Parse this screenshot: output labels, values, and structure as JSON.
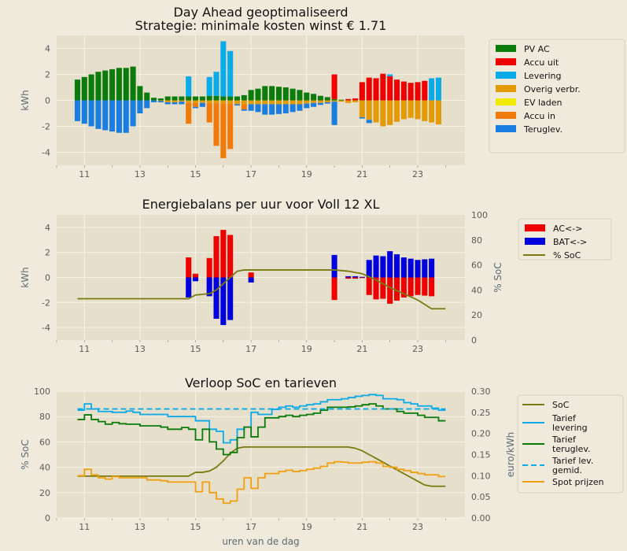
{
  "colors": {
    "figure_bg": "#efeadb",
    "axes_bg": "#e6dfcb",
    "grid": "#f5f2e8",
    "pv": "#0b7b0b",
    "accu_uit": "#ee0000",
    "levering": "#0aabe8",
    "overig": "#e39a07",
    "ev": "#f2ea00",
    "accu_in": "#f07b0a",
    "teruglev": "#1a7de0",
    "ac": "#ee0000",
    "bat": "#0000dd",
    "soc": "#7a7a10",
    "tarief_lev": "#0aabe8",
    "tarief_terug": "#0a7a0a",
    "tarief_gem": "#0aabe8",
    "spot": "#f0a010"
  },
  "chart_data": [
    {
      "type": "bar",
      "title": "Day Ahead geoptimaliseerd\nStrategie: minimale kosten winst € 1.71",
      "ylabel": "kWh",
      "xlim": [
        10,
        24.7
      ],
      "ylim": [
        -5,
        5
      ],
      "xticks": [
        11,
        13,
        15,
        17,
        19,
        21,
        23
      ],
      "yticks": [
        -4,
        -2,
        0,
        2,
        4
      ],
      "grid": true,
      "legend_position": "right-outside",
      "legend": [
        "PV AC",
        "Accu uit",
        "Levering",
        "Overig verbr.",
        "EV laden",
        "Accu in",
        "Teruglev."
      ],
      "hours": [
        10.75,
        11,
        11.25,
        11.5,
        11.75,
        12,
        12.25,
        12.5,
        12.75,
        13,
        13.25,
        13.5,
        13.75,
        14,
        14.25,
        14.5,
        14.75,
        15,
        15.25,
        15.5,
        15.75,
        16,
        16.25,
        16.5,
        16.75,
        17,
        17.25,
        17.5,
        17.75,
        18,
        18.25,
        18.5,
        18.75,
        19,
        19.25,
        19.5,
        19.75,
        20,
        20.25,
        20.5,
        20.75,
        21,
        21.25,
        21.5,
        21.75,
        22,
        22.25,
        22.5,
        22.75,
        23,
        23.25,
        23.5,
        23.75
      ],
      "series": [
        {
          "name": "PV AC",
          "values": [
            1.6,
            1.8,
            2.0,
            2.2,
            2.3,
            2.4,
            2.5,
            2.5,
            2.6,
            1.1,
            0.6,
            0.2,
            0.15,
            0.3,
            0.3,
            0.3,
            0.3,
            0.3,
            0.3,
            0.35,
            0.35,
            0.3,
            0.3,
            0.3,
            0.4,
            0.8,
            0.9,
            1.1,
            1.1,
            1.05,
            1.0,
            0.9,
            0.8,
            0.6,
            0.5,
            0.35,
            0.25,
            0.1,
            0.05,
            0,
            0,
            0,
            0,
            0,
            0,
            0,
            0,
            0,
            0,
            0,
            0,
            0,
            0
          ]
        },
        {
          "name": "Accu uit",
          "values": [
            0,
            0,
            0,
            0,
            0,
            0,
            0,
            0,
            0,
            0,
            0,
            0,
            0,
            0,
            0,
            0,
            0,
            0,
            0,
            0,
            0,
            0,
            0,
            0,
            0,
            0,
            0,
            0,
            0,
            0,
            0,
            0,
            0,
            0,
            0,
            0,
            0,
            1.9,
            0,
            0.1,
            0.15,
            1.4,
            1.75,
            1.7,
            2.05,
            1.85,
            1.6,
            1.45,
            1.35,
            1.4,
            1.5,
            0,
            0
          ]
        },
        {
          "name": "Levering",
          "values": [
            0,
            0,
            0,
            0,
            0,
            0,
            0,
            0,
            0,
            0,
            0,
            0,
            0,
            0,
            0,
            0,
            1.55,
            0,
            0,
            1.45,
            1.85,
            4.25,
            3.5,
            0,
            0,
            0,
            0,
            0,
            0,
            0,
            0,
            0,
            0,
            0,
            0,
            0,
            0,
            0,
            0,
            0,
            0,
            0,
            0,
            0,
            0,
            0.15,
            0,
            0,
            0,
            0,
            0,
            1.7,
            1.75
          ]
        },
        {
          "name": "Overig verbr.",
          "values": [
            0,
            0,
            0,
            0,
            0,
            0,
            0,
            0,
            0,
            0,
            0,
            0,
            -0.05,
            -0.15,
            -0.15,
            -0.1,
            -0.2,
            -0.2,
            -0.2,
            -0.2,
            -0.2,
            -0.25,
            -0.25,
            -0.3,
            -0.3,
            -0.3,
            -0.3,
            -0.3,
            -0.3,
            -0.3,
            -0.3,
            -0.3,
            -0.3,
            -0.25,
            -0.2,
            -0.2,
            -0.15,
            -0.1,
            -0.1,
            -0.2,
            -0.15,
            -1.3,
            -1.5,
            -1.7,
            -2.0,
            -1.9,
            -1.65,
            -1.45,
            -1.35,
            -1.45,
            -1.6,
            -1.7,
            -1.85
          ]
        },
        {
          "name": "EV laden",
          "values": [
            0,
            0,
            0,
            0,
            0,
            0,
            0,
            0,
            0,
            0,
            0,
            0,
            0,
            0,
            0,
            0,
            0,
            0,
            0,
            0,
            0,
            0,
            0,
            0,
            0,
            0,
            0,
            0,
            0,
            0,
            0,
            0,
            0,
            0,
            0,
            0,
            0,
            0,
            0,
            0,
            0,
            0,
            0,
            0,
            0,
            0,
            0,
            0,
            0,
            0,
            0,
            0,
            0
          ]
        },
        {
          "name": "Accu in",
          "values": [
            0,
            0,
            0,
            0,
            0,
            0,
            0,
            0,
            0,
            0,
            0,
            0,
            0,
            0,
            0,
            0,
            -1.6,
            -0.3,
            0,
            -1.5,
            -3.3,
            -4.2,
            -3.5,
            0,
            -0.4,
            0,
            0,
            0,
            0,
            0,
            0,
            0,
            0,
            0,
            0,
            0,
            0,
            0,
            0,
            0,
            0,
            0,
            0,
            0,
            0,
            0,
            0,
            0,
            0,
            0,
            0,
            0,
            0
          ]
        },
        {
          "name": "Teruglev.",
          "values": [
            -1.6,
            -1.8,
            -2.0,
            -2.2,
            -2.3,
            -2.4,
            -2.5,
            -2.5,
            -2.0,
            -1.0,
            -0.6,
            -0.15,
            -0.1,
            -0.15,
            -0.15,
            -0.2,
            0,
            -0.1,
            -0.3,
            0,
            0,
            0,
            0,
            -0.1,
            -0.1,
            -0.5,
            -0.6,
            -0.8,
            -0.8,
            -0.75,
            -0.7,
            -0.6,
            -0.5,
            -0.35,
            -0.3,
            -0.15,
            -0.1,
            -1.8,
            0,
            0,
            0,
            -0.1,
            -0.25,
            0,
            0,
            0,
            0,
            0,
            0,
            0,
            0,
            0,
            0
          ]
        }
      ]
    },
    {
      "type": "bar",
      "title": "Energiebalans per uur voor Voll 12 XL",
      "ylabel": "kWh",
      "ylabel_right": "% SoC",
      "xlim": [
        10,
        24.7
      ],
      "ylim": [
        -5,
        5
      ],
      "ylim_right": [
        0,
        100
      ],
      "xticks": [
        11,
        13,
        15,
        17,
        19,
        21,
        23
      ],
      "yticks": [
        -4,
        -2,
        0,
        2,
        4
      ],
      "yticks_right": [
        0,
        20,
        40,
        60,
        80,
        100
      ],
      "grid": true,
      "legend_position": "right-outside",
      "legend": [
        "AC<->",
        "BAT<->",
        "% SoC"
      ],
      "bars": [
        {
          "x": 14.75,
          "ac": 1.6,
          "bat": -1.6
        },
        {
          "x": 15,
          "ac": 0.3,
          "bat": -0.3
        },
        {
          "x": 15.5,
          "ac": 1.55,
          "bat": -1.5
        },
        {
          "x": 15.75,
          "ac": 3.3,
          "bat": -3.3
        },
        {
          "x": 16,
          "ac": 3.8,
          "bat": -3.8
        },
        {
          "x": 16.25,
          "ac": 3.4,
          "bat": -3.4
        },
        {
          "x": 17,
          "ac": 0.4,
          "bat": -0.4
        },
        {
          "x": 20,
          "ac": -1.8,
          "bat": 1.8
        },
        {
          "x": 20.5,
          "ac": -0.1,
          "bat": 0.1
        },
        {
          "x": 20.75,
          "ac": -0.1,
          "bat": 0.1
        },
        {
          "x": 21,
          "ac": -0.05,
          "bat": 0.05
        },
        {
          "x": 21.25,
          "ac": -1.4,
          "bat": 1.4
        },
        {
          "x": 21.5,
          "ac": -1.75,
          "bat": 1.75
        },
        {
          "x": 21.75,
          "ac": -1.7,
          "bat": 1.7
        },
        {
          "x": 22,
          "ac": -2.1,
          "bat": 2.1
        },
        {
          "x": 22.25,
          "ac": -1.85,
          "bat": 1.85
        },
        {
          "x": 22.5,
          "ac": -1.6,
          "bat": 1.6
        },
        {
          "x": 22.75,
          "ac": -1.5,
          "bat": 1.5
        },
        {
          "x": 23,
          "ac": -1.4,
          "bat": 1.4
        },
        {
          "x": 23.25,
          "ac": -1.45,
          "bat": 1.45
        },
        {
          "x": 23.5,
          "ac": -1.5,
          "bat": 1.5
        }
      ],
      "soc": {
        "x": [
          10.75,
          11,
          12,
          13,
          14,
          14.75,
          15,
          15.5,
          15.75,
          16,
          16.25,
          16.5,
          16.75,
          17,
          18,
          19,
          20,
          20.5,
          21,
          21.5,
          22,
          22.5,
          23,
          23.5,
          24
        ],
        "y": [
          33,
          33,
          33,
          33,
          33,
          33,
          36,
          37,
          40,
          45,
          50,
          55,
          56,
          56,
          56,
          56,
          56,
          55,
          53,
          48,
          42,
          37,
          32,
          25,
          25
        ]
      }
    },
    {
      "type": "line",
      "title": "Verloop SoC en tarieven",
      "xlabel": "uren van de dag",
      "ylabel": "% SoC",
      "ylabel_right": "euro/kWh",
      "xlim": [
        10,
        24.7
      ],
      "ylim": [
        0,
        100
      ],
      "ylim_right": [
        0,
        0.3
      ],
      "xticks": [
        11,
        13,
        15,
        17,
        19,
        21,
        23
      ],
      "yticks": [
        0,
        20,
        40,
        60,
        80,
        100
      ],
      "yticks_right": [
        "0.00",
        "0.05",
        "0.10",
        "0.15",
        "0.20",
        "0.25",
        "0.30"
      ],
      "grid": true,
      "legend_position": "right-outside",
      "legend": [
        "SoC",
        "Tarief\nlevering",
        "Tarief\nteruglev.",
        "Tarief lev.\ngemid.",
        "Spot prijzen"
      ],
      "x": [
        10.75,
        11,
        11.25,
        11.5,
        11.75,
        12,
        12.25,
        12.5,
        12.75,
        13,
        13.25,
        13.5,
        13.75,
        14,
        14.25,
        14.5,
        14.75,
        15,
        15.25,
        15.5,
        15.75,
        16,
        16.25,
        16.5,
        16.75,
        17,
        17.25,
        17.5,
        17.75,
        18,
        18.25,
        18.5,
        18.75,
        19,
        19.25,
        19.5,
        19.75,
        20,
        20.25,
        20.5,
        20.75,
        21,
        21.25,
        21.5,
        21.75,
        22,
        22.25,
        22.5,
        22.75,
        23,
        23.25,
        23.5,
        23.75,
        24
      ],
      "series": [
        {
          "name": "SoC",
          "axis": "left",
          "values": [
            33,
            33,
            33,
            33,
            33,
            33,
            33,
            33,
            33,
            33,
            33,
            33,
            33,
            33,
            33,
            33,
            33,
            36,
            36,
            37,
            40,
            45,
            51,
            55,
            56,
            56,
            56,
            56,
            56,
            56,
            56,
            56,
            56,
            56,
            56,
            56,
            56,
            56,
            56,
            56,
            55,
            53,
            50,
            47,
            44,
            41,
            38,
            35,
            32,
            29,
            26,
            25,
            25,
            25
          ]
        },
        {
          "name": "Tarief levering",
          "axis": "right",
          "values": [
            0.255,
            0.27,
            0.258,
            0.252,
            0.252,
            0.25,
            0.25,
            0.253,
            0.25,
            0.245,
            0.245,
            0.245,
            0.245,
            0.24,
            0.24,
            0.24,
            0.24,
            0.23,
            0.23,
            0.21,
            0.205,
            0.178,
            0.185,
            0.21,
            0.215,
            0.25,
            0.245,
            0.245,
            0.257,
            0.262,
            0.265,
            0.262,
            0.265,
            0.268,
            0.27,
            0.275,
            0.28,
            0.28,
            0.282,
            0.285,
            0.288,
            0.29,
            0.292,
            0.29,
            0.282,
            0.282,
            0.28,
            0.273,
            0.27,
            0.265,
            0.265,
            0.26,
            0.255,
            0.255
          ]
        },
        {
          "name": "Tarief teruglev.",
          "axis": "right",
          "values": [
            0.233,
            0.244,
            0.233,
            0.228,
            0.222,
            0.226,
            0.223,
            0.222,
            0.222,
            0.218,
            0.218,
            0.218,
            0.215,
            0.21,
            0.21,
            0.214,
            0.21,
            0.185,
            0.21,
            0.18,
            0.163,
            0.15,
            0.155,
            0.19,
            0.215,
            0.192,
            0.215,
            0.237,
            0.237,
            0.24,
            0.243,
            0.24,
            0.243,
            0.245,
            0.248,
            0.255,
            0.262,
            0.262,
            0.262,
            0.263,
            0.265,
            0.268,
            0.27,
            0.265,
            0.258,
            0.258,
            0.252,
            0.248,
            0.248,
            0.243,
            0.238,
            0.238,
            0.23,
            0.23
          ]
        },
        {
          "name": "Tarief lev. gemid.",
          "axis": "right",
          "values": [
            0.258,
            0.258,
            0.258,
            0.258,
            0.258,
            0.258,
            0.258,
            0.258,
            0.258,
            0.258,
            0.258,
            0.258,
            0.258,
            0.258,
            0.258,
            0.258,
            0.258,
            0.258,
            0.258,
            0.258,
            0.258,
            0.258,
            0.258,
            0.258,
            0.258,
            0.258,
            0.258,
            0.258,
            0.258,
            0.258,
            0.258,
            0.258,
            0.258,
            0.258,
            0.258,
            0.258,
            0.258,
            0.258,
            0.258,
            0.258,
            0.258,
            0.258,
            0.258,
            0.258,
            0.258,
            0.258,
            0.258,
            0.258,
            0.258,
            0.258,
            0.258,
            0.258,
            0.258,
            0.258
          ]
        },
        {
          "name": "Spot prijzen",
          "axis": "right",
          "values": [
            0.1,
            0.115,
            0.102,
            0.095,
            0.092,
            0.098,
            0.095,
            0.095,
            0.095,
            0.095,
            0.09,
            0.09,
            0.088,
            0.085,
            0.085,
            0.085,
            0.085,
            0.062,
            0.085,
            0.06,
            0.045,
            0.035,
            0.04,
            0.068,
            0.095,
            0.07,
            0.095,
            0.105,
            0.105,
            0.11,
            0.113,
            0.11,
            0.112,
            0.115,
            0.118,
            0.122,
            0.13,
            0.133,
            0.132,
            0.13,
            0.13,
            0.132,
            0.133,
            0.13,
            0.122,
            0.12,
            0.115,
            0.112,
            0.108,
            0.105,
            0.102,
            0.102,
            0.098,
            0.098
          ]
        }
      ]
    }
  ]
}
